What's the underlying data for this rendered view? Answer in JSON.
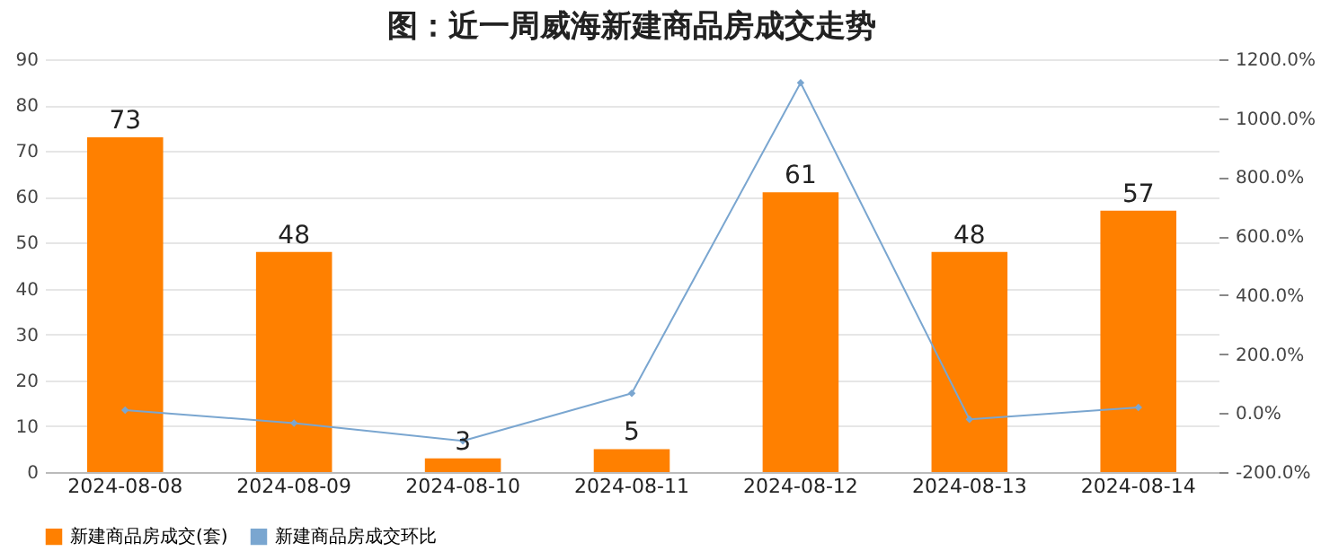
{
  "chart_data": {
    "type": "bar",
    "title": "图：近一周威海新建商品房成交走势",
    "categories": [
      "2024-08-08",
      "2024-08-09",
      "2024-08-10",
      "2024-08-11",
      "2024-08-12",
      "2024-08-13",
      "2024-08-14"
    ],
    "series": [
      {
        "name": "新建商品房成交(套)",
        "color": "#ff8000",
        "values": [
          73,
          48,
          3,
          5,
          61,
          48,
          57
        ],
        "value_labels": [
          "73",
          "48",
          "3",
          "5",
          "61",
          "48",
          "57"
        ]
      },
      {
        "name": "新建商品房成交环比",
        "type": "line",
        "axis": "y2",
        "color": "#7aa6d0",
        "marker": "diamond",
        "values": [
          10,
          -34,
          -94,
          67,
          1120,
          -21,
          19
        ]
      }
    ],
    "ylim": [
      0,
      90
    ],
    "yticks": [
      0,
      10,
      20,
      30,
      40,
      50,
      60,
      70,
      80,
      90
    ],
    "y2lim": [
      -200,
      1200
    ],
    "y2ticks": [
      {
        "value": -200,
        "label": "-200.0%"
      },
      {
        "value": 0,
        "label": "0.0%"
      },
      {
        "value": 200,
        "label": "200.0%"
      },
      {
        "value": 400,
        "label": "400.0%"
      },
      {
        "value": 600,
        "label": "600.0%"
      },
      {
        "value": 800,
        "label": "800.0%"
      },
      {
        "value": 1000,
        "label": "1000.0%"
      },
      {
        "value": 1200,
        "label": "1200.0%"
      }
    ],
    "grid": "y",
    "legend": "bottom"
  }
}
